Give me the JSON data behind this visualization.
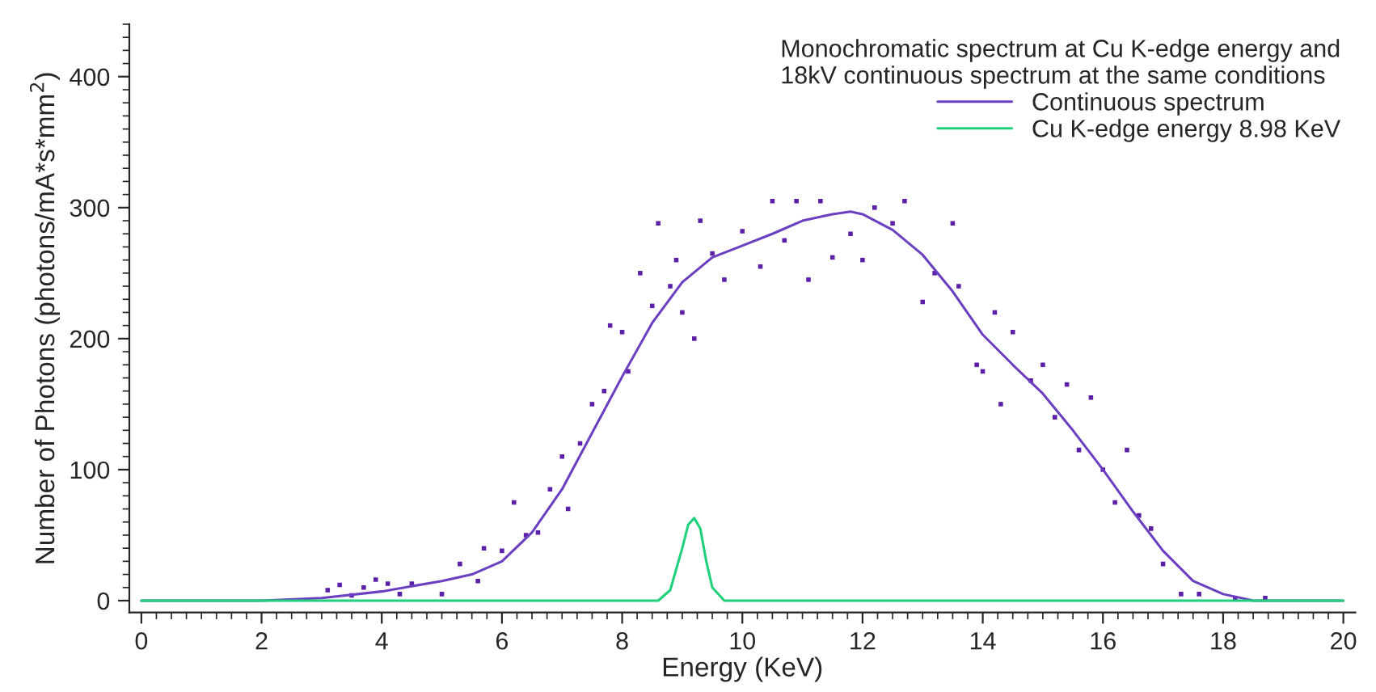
{
  "chart_data": {
    "type": "line",
    "xlabel": "Energy (KeV)",
    "ylabel": "Number of Photons (photons/mA*s*mm$^{2}$)",
    "legend_title": "Monochromatic spectrum at Cu K-edge energy and\n18kV continuous spectrum at the same conditions",
    "xlim": [
      -0.2,
      20.2
    ],
    "ylim": [
      -9,
      440
    ],
    "xticks": [
      0,
      2,
      4,
      6,
      8,
      10,
      12,
      14,
      16,
      18,
      20
    ],
    "yticks": [
      0,
      100,
      200,
      300,
      400
    ],
    "grid": false,
    "legend": "top right",
    "series": [
      {
        "type": "scatter",
        "color": "#5b1fa8",
        "marker": "square",
        "x": [
          3.1,
          3.3,
          3.5,
          3.7,
          3.9,
          4.1,
          4.3,
          4.5,
          5.0,
          5.3,
          5.6,
          5.7,
          6.0,
          6.2,
          6.4,
          6.6,
          6.8,
          7.0,
          7.1,
          7.3,
          7.5,
          7.7,
          7.8,
          8.0,
          8.1,
          8.3,
          8.5,
          8.6,
          8.8,
          8.9,
          9.0,
          9.2,
          9.3,
          9.5,
          9.7,
          10.0,
          10.3,
          10.5,
          10.7,
          10.9,
          11.1,
          11.3,
          11.5,
          11.8,
          12.0,
          12.2,
          12.5,
          12.7,
          13.0,
          13.2,
          13.5,
          13.6,
          13.9,
          14.0,
          14.2,
          14.3,
          14.5,
          14.8,
          15.0,
          15.2,
          15.4,
          15.6,
          15.8,
          16.0,
          16.2,
          16.4,
          16.6,
          16.8,
          17.0,
          17.3,
          17.6,
          18.2,
          18.7
        ],
        "values": [
          8,
          12,
          4,
          10,
          16,
          13,
          5,
          13,
          5,
          28,
          15,
          40,
          38,
          75,
          50,
          52,
          85,
          110,
          70,
          120,
          150,
          160,
          210,
          205,
          175,
          250,
          225,
          288,
          240,
          260,
          220,
          200,
          290,
          265,
          245,
          282,
          255,
          305,
          275,
          305,
          245,
          305,
          262,
          280,
          260,
          300,
          288,
          305,
          228,
          250,
          288,
          240,
          180,
          175,
          220,
          150,
          205,
          168,
          180,
          140,
          165,
          115,
          155,
          100,
          75,
          115,
          65,
          55,
          28,
          5,
          5,
          2,
          2
        ]
      },
      {
        "name": "Continuous spectrum",
        "color": "#6a3fc0",
        "x": [
          0,
          2,
          3,
          4,
          5,
          5.5,
          6,
          6.5,
          7,
          7.5,
          8,
          8.5,
          9,
          9.5,
          10,
          10.5,
          11,
          11.5,
          11.8,
          12,
          12.5,
          13,
          13.5,
          14,
          14.5,
          15,
          15.5,
          16,
          16.5,
          17,
          17.5,
          18,
          18.5,
          20
        ],
        "values": [
          0,
          0,
          2,
          7,
          15,
          20,
          30,
          52,
          85,
          128,
          171,
          212,
          243,
          262,
          271,
          280,
          290,
          295,
          297,
          295,
          283,
          264,
          236,
          203,
          180,
          158,
          130,
          100,
          68,
          38,
          15,
          5,
          0,
          0
        ]
      },
      {
        "name": "Cu K-edge energy 8.98 KeV",
        "color": "#1fd07a",
        "x": [
          0,
          8.6,
          8.8,
          9.0,
          9.1,
          9.2,
          9.3,
          9.4,
          9.5,
          9.7,
          20
        ],
        "values": [
          0,
          0,
          8,
          40,
          58,
          63,
          55,
          30,
          10,
          0,
          0
        ]
      }
    ]
  }
}
